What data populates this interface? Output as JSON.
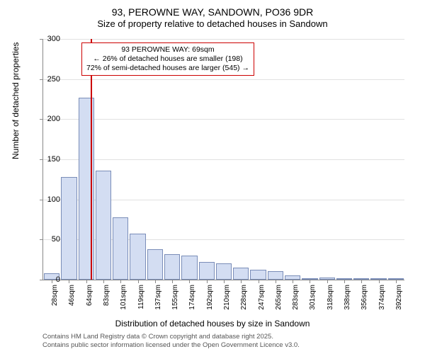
{
  "title": "93, PEROWNE WAY, SANDOWN, PO36 9DR",
  "subtitle": "Size of property relative to detached houses in Sandown",
  "ylabel": "Number of detached properties",
  "xlabel": "Distribution of detached houses by size in Sandown",
  "chart": {
    "type": "histogram",
    "ylim": [
      0,
      300
    ],
    "ytick_step": 50,
    "bar_fill": "#d3ddf2",
    "bar_stroke": "#7a8db8",
    "background_color": "#ffffff",
    "grid_color": "#888888",
    "reference_line": {
      "x_value": 69,
      "color": "#cc0000"
    },
    "categories": [
      "28sqm",
      "46sqm",
      "64sqm",
      "83sqm",
      "101sqm",
      "119sqm",
      "137sqm",
      "155sqm",
      "174sqm",
      "192sqm",
      "210sqm",
      "228sqm",
      "247sqm",
      "265sqm",
      "283sqm",
      "301sqm",
      "318sqm",
      "338sqm",
      "356sqm",
      "374sqm",
      "392sqm"
    ],
    "values": [
      8,
      128,
      227,
      136,
      78,
      57,
      38,
      32,
      30,
      22,
      20,
      15,
      12,
      11,
      5,
      2,
      3,
      1,
      1,
      0,
      0
    ]
  },
  "annotation": {
    "line1": "93 PEROWNE WAY: 69sqm",
    "line2": "← 26% of detached houses are smaller (198)",
    "line3": "72% of semi-detached houses are larger (545) →",
    "border_color": "#cc0000"
  },
  "footnote": {
    "line1": "Contains HM Land Registry data © Crown copyright and database right 2025.",
    "line2": "Contains public sector information licensed under the Open Government Licence v3.0."
  },
  "fonts": {
    "title_size": 14,
    "subtitle_size": 13,
    "label_size": 12,
    "tick_size": 11,
    "annotation_size": 10.5,
    "footnote_size": 9.5
  }
}
